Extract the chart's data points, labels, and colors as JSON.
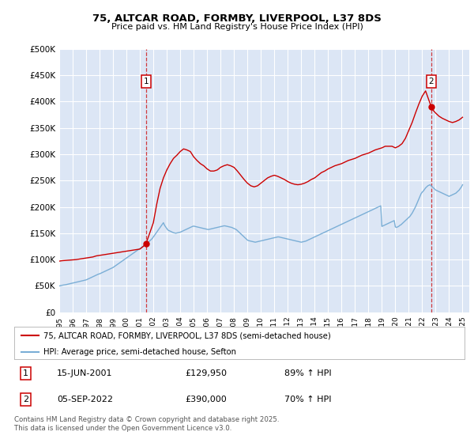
{
  "title": "75, ALTCAR ROAD, FORMBY, LIVERPOOL, L37 8DS",
  "subtitle": "Price paid vs. HM Land Registry's House Price Index (HPI)",
  "legend_line1": "75, ALTCAR ROAD, FORMBY, LIVERPOOL, L37 8DS (semi-detached house)",
  "legend_line2": "HPI: Average price, semi-detached house, Sefton",
  "annotation1_label": "1",
  "annotation1_date": "15-JUN-2001",
  "annotation1_price": "£129,950",
  "annotation1_hpi": "89% ↑ HPI",
  "annotation2_label": "2",
  "annotation2_date": "05-SEP-2022",
  "annotation2_price": "£390,000",
  "annotation2_hpi": "70% ↑ HPI",
  "footnote": "Contains HM Land Registry data © Crown copyright and database right 2025.\nThis data is licensed under the Open Government Licence v3.0.",
  "bg_color": "#dce6f5",
  "red_color": "#cc0000",
  "blue_color": "#7aaed6",
  "ylim": [
    0,
    500000
  ],
  "yticks": [
    0,
    50000,
    100000,
    150000,
    200000,
    250000,
    300000,
    350000,
    400000,
    450000,
    500000
  ],
  "xlim_start": 1995.0,
  "xlim_end": 2025.5,
  "sale1_x": 2001.45,
  "sale1_y": 129950,
  "sale2_x": 2022.67,
  "sale2_y": 390000,
  "hpi_x": [
    1995.0,
    1995.083,
    1995.167,
    1995.25,
    1995.333,
    1995.417,
    1995.5,
    1995.583,
    1995.667,
    1995.75,
    1995.833,
    1995.917,
    1996.0,
    1996.083,
    1996.167,
    1996.25,
    1996.333,
    1996.417,
    1996.5,
    1996.583,
    1996.667,
    1996.75,
    1996.833,
    1996.917,
    1997.0,
    1997.083,
    1997.167,
    1997.25,
    1997.333,
    1997.417,
    1997.5,
    1997.583,
    1997.667,
    1997.75,
    1997.833,
    1997.917,
    1998.0,
    1998.083,
    1998.167,
    1998.25,
    1998.333,
    1998.417,
    1998.5,
    1998.583,
    1998.667,
    1998.75,
    1998.833,
    1998.917,
    1999.0,
    1999.083,
    1999.167,
    1999.25,
    1999.333,
    1999.417,
    1999.5,
    1999.583,
    1999.667,
    1999.75,
    1999.833,
    1999.917,
    2000.0,
    2000.083,
    2000.167,
    2000.25,
    2000.333,
    2000.417,
    2000.5,
    2000.583,
    2000.667,
    2000.75,
    2000.833,
    2000.917,
    2001.0,
    2001.083,
    2001.167,
    2001.25,
    2001.333,
    2001.417,
    2001.5,
    2001.583,
    2001.667,
    2001.75,
    2001.833,
    2001.917,
    2002.0,
    2002.083,
    2002.167,
    2002.25,
    2002.333,
    2002.417,
    2002.5,
    2002.583,
    2002.667,
    2002.75,
    2002.833,
    2002.917,
    2003.0,
    2003.083,
    2003.167,
    2003.25,
    2003.333,
    2003.417,
    2003.5,
    2003.583,
    2003.667,
    2003.75,
    2003.833,
    2003.917,
    2004.0,
    2004.083,
    2004.167,
    2004.25,
    2004.333,
    2004.417,
    2004.5,
    2004.583,
    2004.667,
    2004.75,
    2004.833,
    2004.917,
    2005.0,
    2005.083,
    2005.167,
    2005.25,
    2005.333,
    2005.417,
    2005.5,
    2005.583,
    2005.667,
    2005.75,
    2005.833,
    2005.917,
    2006.0,
    2006.083,
    2006.167,
    2006.25,
    2006.333,
    2006.417,
    2006.5,
    2006.583,
    2006.667,
    2006.75,
    2006.833,
    2006.917,
    2007.0,
    2007.083,
    2007.167,
    2007.25,
    2007.333,
    2007.417,
    2007.5,
    2007.583,
    2007.667,
    2007.75,
    2007.833,
    2007.917,
    2008.0,
    2008.083,
    2008.167,
    2008.25,
    2008.333,
    2008.417,
    2008.5,
    2008.583,
    2008.667,
    2008.75,
    2008.833,
    2008.917,
    2009.0,
    2009.083,
    2009.167,
    2009.25,
    2009.333,
    2009.417,
    2009.5,
    2009.583,
    2009.667,
    2009.75,
    2009.833,
    2009.917,
    2010.0,
    2010.083,
    2010.167,
    2010.25,
    2010.333,
    2010.417,
    2010.5,
    2010.583,
    2010.667,
    2010.75,
    2010.833,
    2010.917,
    2011.0,
    2011.083,
    2011.167,
    2011.25,
    2011.333,
    2011.417,
    2011.5,
    2011.583,
    2011.667,
    2011.75,
    2011.833,
    2011.917,
    2012.0,
    2012.083,
    2012.167,
    2012.25,
    2012.333,
    2012.417,
    2012.5,
    2012.583,
    2012.667,
    2012.75,
    2012.833,
    2012.917,
    2013.0,
    2013.083,
    2013.167,
    2013.25,
    2013.333,
    2013.417,
    2013.5,
    2013.583,
    2013.667,
    2013.75,
    2013.833,
    2013.917,
    2014.0,
    2014.083,
    2014.167,
    2014.25,
    2014.333,
    2014.417,
    2014.5,
    2014.583,
    2014.667,
    2014.75,
    2014.833,
    2014.917,
    2015.0,
    2015.083,
    2015.167,
    2015.25,
    2015.333,
    2015.417,
    2015.5,
    2015.583,
    2015.667,
    2015.75,
    2015.833,
    2015.917,
    2016.0,
    2016.083,
    2016.167,
    2016.25,
    2016.333,
    2016.417,
    2016.5,
    2016.583,
    2016.667,
    2016.75,
    2016.833,
    2016.917,
    2017.0,
    2017.083,
    2017.167,
    2017.25,
    2017.333,
    2017.417,
    2017.5,
    2017.583,
    2017.667,
    2017.75,
    2017.833,
    2017.917,
    2018.0,
    2018.083,
    2018.167,
    2018.25,
    2018.333,
    2018.417,
    2018.5,
    2018.583,
    2018.667,
    2018.75,
    2018.833,
    2018.917,
    2019.0,
    2019.083,
    2019.167,
    2019.25,
    2019.333,
    2019.417,
    2019.5,
    2019.583,
    2019.667,
    2019.75,
    2019.833,
    2019.917,
    2020.0,
    2020.083,
    2020.167,
    2020.25,
    2020.333,
    2020.417,
    2020.5,
    2020.583,
    2020.667,
    2020.75,
    2020.833,
    2020.917,
    2021.0,
    2021.083,
    2021.167,
    2021.25,
    2021.333,
    2021.417,
    2021.5,
    2021.583,
    2021.667,
    2021.75,
    2021.833,
    2021.917,
    2022.0,
    2022.083,
    2022.167,
    2022.25,
    2022.333,
    2022.417,
    2022.5,
    2022.583,
    2022.667,
    2022.75,
    2022.833,
    2022.917,
    2023.0,
    2023.083,
    2023.167,
    2023.25,
    2023.333,
    2023.417,
    2023.5,
    2023.583,
    2023.667,
    2023.75,
    2023.833,
    2023.917,
    2024.0,
    2024.083,
    2024.167,
    2024.25,
    2024.333,
    2024.417,
    2024.5,
    2024.583,
    2024.667,
    2024.75,
    2024.833,
    2024.917,
    2025.0
  ],
  "hpi_y": [
    50000,
    50500,
    51000,
    51500,
    51800,
    52000,
    52500,
    53000,
    53500,
    54000,
    54500,
    55000,
    55500,
    56000,
    56500,
    57000,
    57500,
    58000,
    58500,
    59000,
    59500,
    60000,
    60500,
    61000,
    61500,
    62500,
    63500,
    64500,
    65500,
    66500,
    67500,
    68500,
    69500,
    70500,
    71500,
    72500,
    73000,
    74000,
    75000,
    76000,
    77000,
    78000,
    79000,
    80000,
    81000,
    82000,
    83000,
    84000,
    85000,
    86500,
    88000,
    89500,
    91000,
    92500,
    94000,
    95500,
    97000,
    98500,
    100000,
    101500,
    103000,
    104500,
    106000,
    107500,
    109000,
    110500,
    112000,
    113500,
    115000,
    116500,
    118000,
    119500,
    121000,
    122500,
    124000,
    125500,
    127000,
    128500,
    129950,
    132000,
    134000,
    136000,
    138000,
    140000,
    143000,
    146000,
    149000,
    152000,
    155000,
    158000,
    161000,
    164000,
    167000,
    170000,
    165000,
    162000,
    159000,
    156000,
    155000,
    154000,
    153000,
    152000,
    151000,
    150500,
    150000,
    150500,
    151000,
    151500,
    152000,
    153000,
    154000,
    155000,
    156000,
    157000,
    158000,
    159000,
    160000,
    161000,
    162000,
    163000,
    163500,
    163000,
    162500,
    162000,
    161500,
    161000,
    160500,
    160000,
    159500,
    159000,
    158500,
    158000,
    157500,
    157000,
    157500,
    158000,
    158500,
    159000,
    159500,
    160000,
    160500,
    161000,
    161500,
    162000,
    162500,
    163000,
    163500,
    164000,
    164000,
    163500,
    163000,
    162500,
    162000,
    161500,
    161000,
    160000,
    159000,
    158000,
    157000,
    155000,
    153000,
    151000,
    149000,
    147000,
    145000,
    143000,
    141000,
    139000,
    137000,
    136000,
    135500,
    135000,
    134500,
    134000,
    133500,
    133000,
    133500,
    134000,
    134500,
    135000,
    135500,
    136000,
    136500,
    137000,
    137500,
    138000,
    138500,
    139000,
    139500,
    140000,
    140500,
    141000,
    141500,
    142000,
    142500,
    143000,
    143000,
    142500,
    142000,
    141500,
    141000,
    140500,
    140000,
    139500,
    139000,
    138500,
    138000,
    137500,
    137000,
    136500,
    136000,
    135500,
    135000,
    134500,
    134000,
    133500,
    133000,
    133500,
    134000,
    134500,
    135000,
    136000,
    137000,
    138000,
    139000,
    140000,
    141000,
    142000,
    143000,
    144000,
    145000,
    146000,
    147000,
    148000,
    149000,
    150000,
    151000,
    152000,
    153000,
    154000,
    155000,
    156000,
    157000,
    158000,
    159000,
    160000,
    161000,
    162000,
    163000,
    164000,
    165000,
    166000,
    167000,
    168000,
    169000,
    170000,
    171000,
    172000,
    173000,
    174000,
    175000,
    176000,
    177000,
    178000,
    179000,
    180000,
    181000,
    182000,
    183000,
    184000,
    185000,
    186000,
    187000,
    188000,
    189000,
    190000,
    191000,
    192000,
    193000,
    194000,
    195000,
    196000,
    197000,
    198000,
    199000,
    200000,
    201000,
    202000,
    163000,
    164000,
    165000,
    166000,
    167000,
    168000,
    169000,
    170000,
    171000,
    172000,
    173000,
    174000,
    162000,
    161000,
    162000,
    163000,
    165000,
    166000,
    168000,
    170000,
    172000,
    174000,
    176000,
    178000,
    180000,
    182000,
    185000,
    188000,
    192000,
    196000,
    200000,
    205000,
    210000,
    215000,
    220000,
    225000,
    228000,
    230000,
    233000,
    236000,
    238000,
    240000,
    241000,
    242000,
    240000,
    238000,
    236000,
    234000,
    232000,
    231000,
    230000,
    229000,
    228000,
    227000,
    226000,
    225000,
    224000,
    223000,
    222000,
    221000,
    220000,
    221000,
    222000,
    223000,
    224000,
    225000,
    226000,
    228000,
    230000,
    232000,
    235000,
    238000,
    242000
  ],
  "price_x": [
    1995.0,
    1995.083,
    1995.25,
    1995.5,
    1995.75,
    1996.0,
    1996.25,
    1996.5,
    1996.75,
    1997.0,
    1997.25,
    1997.5,
    1997.75,
    1998.0,
    1998.25,
    1998.5,
    1998.75,
    1999.0,
    1999.25,
    1999.5,
    1999.75,
    2000.0,
    2000.25,
    2000.5,
    2000.75,
    2001.0,
    2001.25,
    2001.45,
    2002.0,
    2002.25,
    2002.5,
    2002.75,
    2003.0,
    2003.25,
    2003.5,
    2003.75,
    2004.0,
    2004.25,
    2004.5,
    2004.75,
    2005.0,
    2005.25,
    2005.5,
    2005.75,
    2006.0,
    2006.25,
    2006.5,
    2006.75,
    2007.0,
    2007.25,
    2007.5,
    2007.75,
    2008.0,
    2008.25,
    2008.5,
    2008.75,
    2009.0,
    2009.25,
    2009.5,
    2009.75,
    2010.0,
    2010.25,
    2010.5,
    2010.75,
    2011.0,
    2011.25,
    2011.5,
    2011.75,
    2012.0,
    2012.25,
    2012.5,
    2012.75,
    2013.0,
    2013.25,
    2013.5,
    2013.75,
    2014.0,
    2014.25,
    2014.5,
    2014.75,
    2015.0,
    2015.25,
    2015.5,
    2015.75,
    2016.0,
    2016.25,
    2016.5,
    2016.75,
    2017.0,
    2017.25,
    2017.5,
    2017.75,
    2018.0,
    2018.25,
    2018.5,
    2018.75,
    2019.0,
    2019.25,
    2019.5,
    2019.75,
    2020.0,
    2020.25,
    2020.5,
    2020.75,
    2021.0,
    2021.25,
    2021.5,
    2021.75,
    2022.0,
    2022.25,
    2022.67,
    2022.75,
    2023.0,
    2023.25,
    2023.5,
    2023.75,
    2024.0,
    2024.25,
    2024.5,
    2024.75,
    2025.0
  ],
  "price_y": [
    97000,
    97500,
    98000,
    98500,
    99000,
    99500,
    100000,
    101000,
    102000,
    103000,
    104000,
    105000,
    107000,
    108000,
    109000,
    110000,
    111000,
    112000,
    113000,
    114000,
    115000,
    116000,
    117000,
    118000,
    119000,
    120000,
    125000,
    129950,
    170000,
    205000,
    235000,
    255000,
    270000,
    282000,
    292000,
    298000,
    305000,
    310000,
    308000,
    305000,
    295000,
    288000,
    282000,
    278000,
    272000,
    268000,
    268000,
    270000,
    275000,
    278000,
    280000,
    278000,
    275000,
    268000,
    260000,
    252000,
    245000,
    240000,
    238000,
    240000,
    245000,
    250000,
    255000,
    258000,
    260000,
    258000,
    255000,
    252000,
    248000,
    245000,
    243000,
    242000,
    243000,
    245000,
    248000,
    252000,
    255000,
    260000,
    265000,
    268000,
    272000,
    275000,
    278000,
    280000,
    282000,
    285000,
    288000,
    290000,
    292000,
    295000,
    298000,
    300000,
    302000,
    305000,
    308000,
    310000,
    312000,
    315000,
    315000,
    315000,
    312000,
    315000,
    320000,
    330000,
    345000,
    360000,
    378000,
    395000,
    410000,
    420000,
    390000,
    385000,
    378000,
    372000,
    368000,
    365000,
    362000,
    360000,
    362000,
    365000,
    370000
  ]
}
